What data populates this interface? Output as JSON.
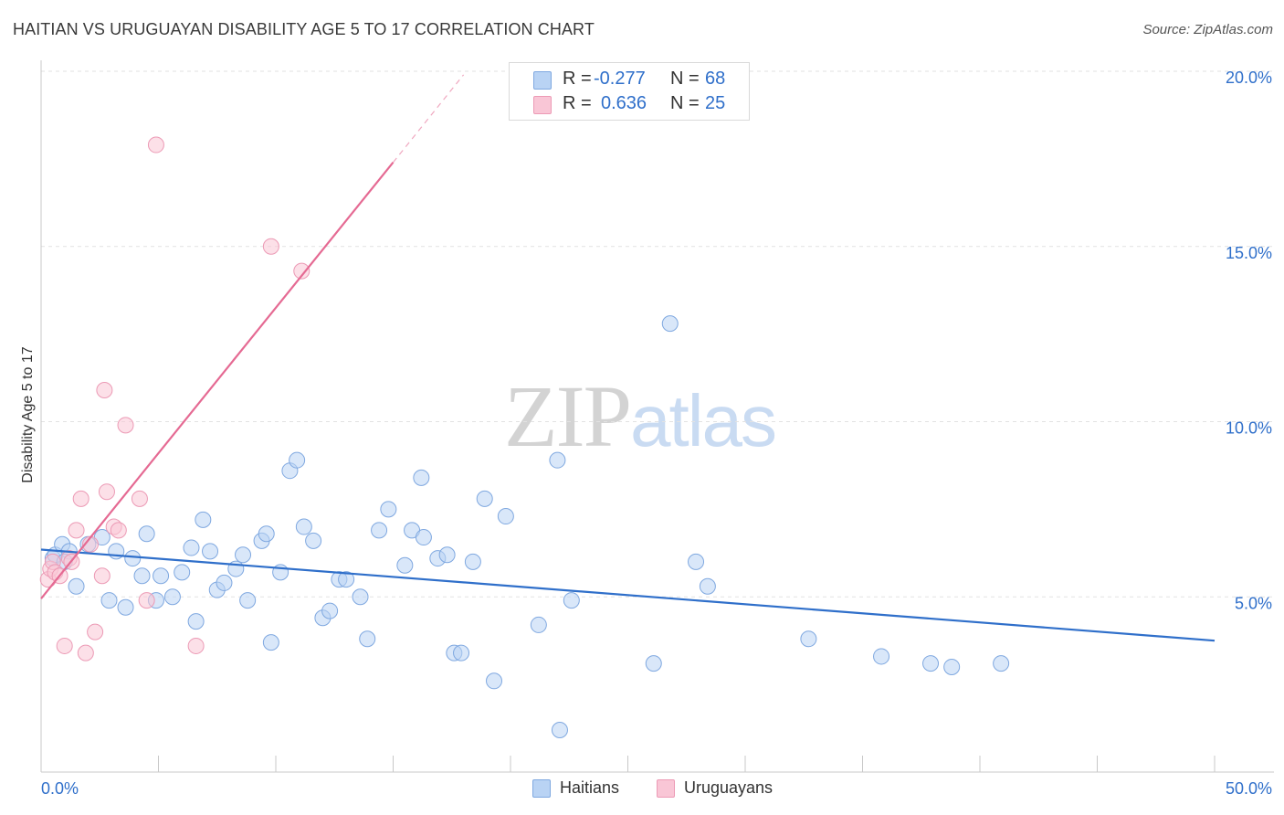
{
  "header": {
    "title": "HAITIAN VS URUGUAYAN DISABILITY AGE 5 TO 17 CORRELATION CHART",
    "source": "Source: ZipAtlas.com"
  },
  "watermark": {
    "zip": "ZIP",
    "atlas": "atlas"
  },
  "stats": {
    "haitians": {
      "r_label": "R =",
      "r_value": "-0.277",
      "n_label": "N =",
      "n_value": "68"
    },
    "uruguayans": {
      "r_label": "R =",
      "r_value": "0.636",
      "n_label": "N =",
      "n_value": "25"
    }
  },
  "legend": {
    "haitians": "Haitians",
    "uruguayans": "Uruguayans"
  },
  "colors": {
    "blue": "#2f6fca",
    "pink": "#e56a93",
    "blue_fill": "#b9d3f4",
    "pink_fill": "#f9c6d6"
  },
  "chart_data": {
    "type": "scatter",
    "title": "HAITIAN VS URUGUAYAN DISABILITY AGE 5 TO 17 CORRELATION CHART",
    "xlabel": "",
    "ylabel": "Disability Age 5 to 17",
    "xlim": [
      0,
      50
    ],
    "ylim": [
      0,
      20
    ],
    "x_tick_labels": [
      "0.0%",
      "50.0%"
    ],
    "y_ticks": [
      5,
      10,
      15,
      20
    ],
    "y_tick_labels": [
      "5.0%",
      "10.0%",
      "15.0%",
      "20.0%"
    ],
    "grid": true,
    "legend_position": "bottom-center",
    "series": [
      {
        "name": "Haitians",
        "points": [
          [
            0.5,
            6.1
          ],
          [
            0.6,
            6.2
          ],
          [
            0.9,
            6.5
          ],
          [
            1.2,
            6.3
          ],
          [
            1.5,
            5.3
          ],
          [
            2.0,
            6.5
          ],
          [
            2.6,
            6.7
          ],
          [
            2.9,
            4.9
          ],
          [
            3.2,
            6.3
          ],
          [
            3.6,
            4.7
          ],
          [
            3.9,
            6.1
          ],
          [
            4.3,
            5.6
          ],
          [
            4.5,
            6.8
          ],
          [
            4.9,
            4.9
          ],
          [
            5.1,
            5.6
          ],
          [
            5.6,
            5.0
          ],
          [
            6.0,
            5.7
          ],
          [
            6.4,
            6.4
          ],
          [
            6.6,
            4.3
          ],
          [
            6.9,
            7.2
          ],
          [
            7.2,
            6.3
          ],
          [
            7.5,
            5.2
          ],
          [
            7.8,
            5.4
          ],
          [
            8.3,
            5.8
          ],
          [
            8.6,
            6.2
          ],
          [
            8.8,
            4.9
          ],
          [
            9.4,
            6.6
          ],
          [
            9.6,
            6.8
          ],
          [
            9.8,
            3.7
          ],
          [
            10.2,
            5.7
          ],
          [
            10.6,
            8.6
          ],
          [
            10.9,
            8.9
          ],
          [
            11.2,
            7.0
          ],
          [
            11.6,
            6.6
          ],
          [
            12.0,
            4.4
          ],
          [
            12.3,
            4.6
          ],
          [
            12.7,
            5.5
          ],
          [
            13.0,
            5.5
          ],
          [
            13.6,
            5.0
          ],
          [
            13.9,
            3.8
          ],
          [
            14.4,
            6.9
          ],
          [
            14.8,
            7.5
          ],
          [
            15.5,
            5.9
          ],
          [
            15.8,
            6.9
          ],
          [
            16.2,
            8.4
          ],
          [
            16.3,
            6.7
          ],
          [
            16.9,
            6.1
          ],
          [
            17.3,
            6.2
          ],
          [
            17.6,
            3.4
          ],
          [
            17.9,
            3.4
          ],
          [
            18.4,
            6.0
          ],
          [
            18.9,
            7.8
          ],
          [
            19.3,
            2.6
          ],
          [
            19.8,
            7.3
          ],
          [
            21.2,
            4.2
          ],
          [
            22.0,
            8.9
          ],
          [
            22.1,
            1.2
          ],
          [
            22.6,
            4.9
          ],
          [
            26.1,
            3.1
          ],
          [
            26.8,
            12.8
          ],
          [
            27.9,
            6.0
          ],
          [
            28.4,
            5.3
          ],
          [
            32.7,
            3.8
          ],
          [
            35.8,
            3.3
          ],
          [
            37.9,
            3.1
          ],
          [
            38.8,
            3.0
          ],
          [
            40.9,
            3.1
          ],
          [
            1.0,
            6.0
          ]
        ]
      },
      {
        "name": "Uruguayans",
        "points": [
          [
            0.3,
            5.5
          ],
          [
            0.4,
            5.8
          ],
          [
            0.5,
            6.0
          ],
          [
            0.6,
            5.7
          ],
          [
            0.8,
            5.6
          ],
          [
            1.0,
            3.6
          ],
          [
            1.2,
            6.1
          ],
          [
            1.3,
            6.0
          ],
          [
            1.5,
            6.9
          ],
          [
            1.7,
            7.8
          ],
          [
            1.9,
            3.4
          ],
          [
            2.1,
            6.5
          ],
          [
            2.3,
            4.0
          ],
          [
            2.6,
            5.6
          ],
          [
            2.7,
            10.9
          ],
          [
            2.8,
            8.0
          ],
          [
            3.1,
            7.0
          ],
          [
            3.3,
            6.9
          ],
          [
            3.6,
            9.9
          ],
          [
            4.2,
            7.8
          ],
          [
            4.5,
            4.9
          ],
          [
            4.9,
            17.9
          ],
          [
            6.6,
            3.6
          ],
          [
            9.8,
            15.0
          ],
          [
            11.1,
            14.3
          ]
        ]
      }
    ],
    "trendlines": [
      {
        "series": "Haitians",
        "x": [
          0,
          50
        ],
        "y": [
          6.35,
          3.75
        ]
      },
      {
        "series": "Uruguayans",
        "x": [
          0,
          15
        ],
        "y": [
          4.95,
          17.4
        ],
        "dashed_extension": {
          "x": [
            15,
            18
          ],
          "y": [
            17.4,
            19.9
          ]
        }
      }
    ]
  }
}
